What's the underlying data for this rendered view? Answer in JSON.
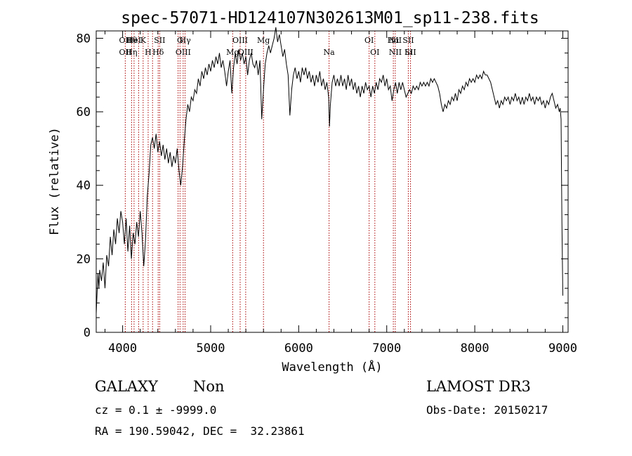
{
  "chart_data": {
    "type": "line",
    "title": "spec-57071-HD124107N302613M01_sp11-238.fits",
    "xlabel": "Wavelength (Å)",
    "ylabel": "Flux (relative)",
    "xlim": [
      3700,
      9060
    ],
    "ylim": [
      0,
      82
    ],
    "xticks": [
      4000,
      5000,
      6000,
      7000,
      8000,
      9000
    ],
    "yticks": [
      0,
      20,
      40,
      60,
      80
    ],
    "grid": false,
    "series": [
      {
        "points": [
          [
            3700,
            5
          ],
          [
            3710,
            11
          ],
          [
            3720,
            16
          ],
          [
            3730,
            12
          ],
          [
            3740,
            17
          ],
          [
            3760,
            14
          ],
          [
            3780,
            19
          ],
          [
            3800,
            12
          ],
          [
            3820,
            21
          ],
          [
            3840,
            18
          ],
          [
            3860,
            26
          ],
          [
            3880,
            21
          ],
          [
            3900,
            28
          ],
          [
            3920,
            24
          ],
          [
            3940,
            31
          ],
          [
            3960,
            27
          ],
          [
            3980,
            33
          ],
          [
            4000,
            30
          ],
          [
            4020,
            24
          ],
          [
            4040,
            31
          ],
          [
            4060,
            22
          ],
          [
            4080,
            29
          ],
          [
            4100,
            20
          ],
          [
            4120,
            27
          ],
          [
            4140,
            24
          ],
          [
            4160,
            30
          ],
          [
            4180,
            26
          ],
          [
            4200,
            33
          ],
          [
            4220,
            27
          ],
          [
            4240,
            18
          ],
          [
            4260,
            25
          ],
          [
            4280,
            37
          ],
          [
            4300,
            43
          ],
          [
            4320,
            51
          ],
          [
            4340,
            53
          ],
          [
            4360,
            50
          ],
          [
            4380,
            54
          ],
          [
            4400,
            49
          ],
          [
            4420,
            52
          ],
          [
            4440,
            48
          ],
          [
            4460,
            51
          ],
          [
            4480,
            47
          ],
          [
            4500,
            50
          ],
          [
            4520,
            46
          ],
          [
            4540,
            49
          ],
          [
            4560,
            45
          ],
          [
            4580,
            48
          ],
          [
            4600,
            46
          ],
          [
            4620,
            50
          ],
          [
            4640,
            44
          ],
          [
            4660,
            40
          ],
          [
            4680,
            45
          ],
          [
            4700,
            52
          ],
          [
            4720,
            58
          ],
          [
            4740,
            62
          ],
          [
            4760,
            60
          ],
          [
            4780,
            64
          ],
          [
            4800,
            63
          ],
          [
            4820,
            66
          ],
          [
            4840,
            65
          ],
          [
            4860,
            69
          ],
          [
            4880,
            67
          ],
          [
            4900,
            71
          ],
          [
            4920,
            69
          ],
          [
            4940,
            72
          ],
          [
            4960,
            70
          ],
          [
            4980,
            73
          ],
          [
            5000,
            71
          ],
          [
            5020,
            74
          ],
          [
            5040,
            72
          ],
          [
            5060,
            75
          ],
          [
            5080,
            73
          ],
          [
            5100,
            76
          ],
          [
            5120,
            72
          ],
          [
            5140,
            74
          ],
          [
            5160,
            71
          ],
          [
            5180,
            67
          ],
          [
            5200,
            71
          ],
          [
            5220,
            74
          ],
          [
            5240,
            65
          ],
          [
            5260,
            72
          ],
          [
            5280,
            76
          ],
          [
            5300,
            73
          ],
          [
            5320,
            77
          ],
          [
            5340,
            74
          ],
          [
            5360,
            76
          ],
          [
            5380,
            73
          ],
          [
            5400,
            75
          ],
          [
            5420,
            70
          ],
          [
            5440,
            74
          ],
          [
            5460,
            76
          ],
          [
            5480,
            73
          ],
          [
            5500,
            72
          ],
          [
            5520,
            74
          ],
          [
            5540,
            70
          ],
          [
            5560,
            74
          ],
          [
            5580,
            58
          ],
          [
            5600,
            66
          ],
          [
            5620,
            73
          ],
          [
            5640,
            76
          ],
          [
            5660,
            78
          ],
          [
            5680,
            76
          ],
          [
            5700,
            78
          ],
          [
            5720,
            80
          ],
          [
            5740,
            83
          ],
          [
            5760,
            79
          ],
          [
            5780,
            81
          ],
          [
            5800,
            78
          ],
          [
            5820,
            75
          ],
          [
            5840,
            77
          ],
          [
            5860,
            73
          ],
          [
            5880,
            70
          ],
          [
            5900,
            59
          ],
          [
            5920,
            66
          ],
          [
            5940,
            70
          ],
          [
            5960,
            72
          ],
          [
            5980,
            69
          ],
          [
            6000,
            71
          ],
          [
            6020,
            68
          ],
          [
            6040,
            72
          ],
          [
            6060,
            70
          ],
          [
            6080,
            72
          ],
          [
            6100,
            69
          ],
          [
            6120,
            71
          ],
          [
            6140,
            68
          ],
          [
            6160,
            70
          ],
          [
            6180,
            67
          ],
          [
            6200,
            70
          ],
          [
            6220,
            68
          ],
          [
            6240,
            71
          ],
          [
            6260,
            67
          ],
          [
            6280,
            69
          ],
          [
            6300,
            66
          ],
          [
            6320,
            68
          ],
          [
            6340,
            64
          ],
          [
            6350,
            56
          ],
          [
            6360,
            62
          ],
          [
            6380,
            68
          ],
          [
            6400,
            70
          ],
          [
            6420,
            67
          ],
          [
            6440,
            69
          ],
          [
            6460,
            67
          ],
          [
            6480,
            70
          ],
          [
            6500,
            67
          ],
          [
            6520,
            69
          ],
          [
            6540,
            66
          ],
          [
            6560,
            70
          ],
          [
            6580,
            67
          ],
          [
            6600,
            69
          ],
          [
            6620,
            66
          ],
          [
            6640,
            68
          ],
          [
            6660,
            65
          ],
          [
            6680,
            67
          ],
          [
            6700,
            64
          ],
          [
            6720,
            67
          ],
          [
            6740,
            65
          ],
          [
            6760,
            68
          ],
          [
            6780,
            66
          ],
          [
            6800,
            67
          ],
          [
            6820,
            64
          ],
          [
            6840,
            67
          ],
          [
            6860,
            65
          ],
          [
            6880,
            68
          ],
          [
            6900,
            66
          ],
          [
            6920,
            69
          ],
          [
            6940,
            68
          ],
          [
            6960,
            70
          ],
          [
            6980,
            67
          ],
          [
            7000,
            69
          ],
          [
            7020,
            66
          ],
          [
            7040,
            67
          ],
          [
            7060,
            63
          ],
          [
            7080,
            66
          ],
          [
            7100,
            68
          ],
          [
            7120,
            65
          ],
          [
            7140,
            68
          ],
          [
            7160,
            66
          ],
          [
            7180,
            68
          ],
          [
            7200,
            66
          ],
          [
            7220,
            64
          ],
          [
            7240,
            65
          ],
          [
            7260,
            66
          ],
          [
            7280,
            65
          ],
          [
            7300,
            67
          ],
          [
            7320,
            66
          ],
          [
            7340,
            67
          ],
          [
            7360,
            66
          ],
          [
            7380,
            68
          ],
          [
            7400,
            67
          ],
          [
            7420,
            68
          ],
          [
            7440,
            67
          ],
          [
            7460,
            68
          ],
          [
            7480,
            67
          ],
          [
            7500,
            69
          ],
          [
            7520,
            68
          ],
          [
            7540,
            69
          ],
          [
            7560,
            68
          ],
          [
            7580,
            67
          ],
          [
            7600,
            65
          ],
          [
            7620,
            62
          ],
          [
            7640,
            60
          ],
          [
            7660,
            62
          ],
          [
            7680,
            61
          ],
          [
            7700,
            63
          ],
          [
            7720,
            62
          ],
          [
            7740,
            64
          ],
          [
            7760,
            63
          ],
          [
            7780,
            65
          ],
          [
            7800,
            63
          ],
          [
            7820,
            66
          ],
          [
            7840,
            65
          ],
          [
            7860,
            67
          ],
          [
            7880,
            66
          ],
          [
            7900,
            68
          ],
          [
            7920,
            67
          ],
          [
            7940,
            69
          ],
          [
            7960,
            68
          ],
          [
            7980,
            69
          ],
          [
            8000,
            68
          ],
          [
            8020,
            70
          ],
          [
            8040,
            69
          ],
          [
            8060,
            70
          ],
          [
            8080,
            69
          ],
          [
            8100,
            71
          ],
          [
            8120,
            70
          ],
          [
            8140,
            70
          ],
          [
            8160,
            69
          ],
          [
            8180,
            68
          ],
          [
            8200,
            66
          ],
          [
            8220,
            64
          ],
          [
            8240,
            62
          ],
          [
            8260,
            63
          ],
          [
            8280,
            61
          ],
          [
            8300,
            63
          ],
          [
            8320,
            62
          ],
          [
            8340,
            64
          ],
          [
            8360,
            63
          ],
          [
            8380,
            64
          ],
          [
            8400,
            62
          ],
          [
            8420,
            64
          ],
          [
            8440,
            63
          ],
          [
            8460,
            65
          ],
          [
            8480,
            63
          ],
          [
            8500,
            64
          ],
          [
            8520,
            62
          ],
          [
            8540,
            64
          ],
          [
            8560,
            62
          ],
          [
            8580,
            64
          ],
          [
            8600,
            63
          ],
          [
            8620,
            65
          ],
          [
            8640,
            63
          ],
          [
            8660,
            64
          ],
          [
            8680,
            62
          ],
          [
            8700,
            64
          ],
          [
            8720,
            63
          ],
          [
            8740,
            64
          ],
          [
            8760,
            62
          ],
          [
            8780,
            63
          ],
          [
            8800,
            61
          ],
          [
            8820,
            63
          ],
          [
            8840,
            62
          ],
          [
            8860,
            64
          ],
          [
            8880,
            65
          ],
          [
            8900,
            63
          ],
          [
            8920,
            61
          ],
          [
            8940,
            62
          ],
          [
            8960,
            60
          ],
          [
            8970,
            61
          ],
          [
            8980,
            58
          ],
          [
            8990,
            30
          ],
          [
            9000,
            10
          ]
        ]
      }
    ],
    "lines": [
      {
        "wavelength": 4030,
        "labels": [
          "OII",
          "OII"
        ]
      },
      {
        "wavelength": 4102,
        "labels": [
          "Hθ",
          "Hη"
        ]
      },
      {
        "wavelength": 4130,
        "labels": [
          "HeI"
        ]
      },
      {
        "wavelength": 4182,
        "labels": []
      },
      {
        "wavelength": 4233,
        "labels": [
          "K"
        ]
      },
      {
        "wavelength": 4290,
        "labels": [
          "H"
        ]
      },
      {
        "wavelength": 4340,
        "labels": []
      },
      {
        "wavelength": 4404,
        "labels": [
          "Hδ"
        ]
      },
      {
        "wavelength": 4421,
        "labels": [
          "SII"
        ]
      },
      {
        "wavelength": 4630,
        "labels": []
      },
      {
        "wavelength": 4652,
        "labels": [
          "G"
        ]
      },
      {
        "wavelength": 4688,
        "labels": [
          "OIII"
        ]
      },
      {
        "wavelength": 4710,
        "labels": [
          "Hγ"
        ]
      },
      {
        "wavelength": 5250,
        "labels": [
          "Mg"
        ]
      },
      {
        "wavelength": 5335,
        "labels": [
          "OIII"
        ]
      },
      {
        "wavelength": 5398,
        "labels": [
          "OIII"
        ]
      },
      {
        "wavelength": 5600,
        "labels": [
          "Mg"
        ]
      },
      {
        "wavelength": 6345,
        "labels": [
          "Na"
        ]
      },
      {
        "wavelength": 6800,
        "labels": [
          "OI"
        ]
      },
      {
        "wavelength": 6865,
        "labels": [
          "OI"
        ]
      },
      {
        "wavelength": 7075,
        "labels": [
          "Hα"
        ]
      },
      {
        "wavelength": 7097,
        "labels": [
          "NII",
          "NII"
        ]
      },
      {
        "wavelength": 7245,
        "labels": [
          "SII",
          "Li"
        ]
      },
      {
        "wavelength": 7270,
        "labels": [
          "SII"
        ]
      }
    ],
    "line_color": "#aa0000"
  },
  "info": {
    "class": "GALAXY",
    "subclass": "Non",
    "survey": "LAMOST DR3",
    "cz": "cz = 0.1 ± -9999.0",
    "obs_date": "Obs-Date: 20150217",
    "coords": "RA = 190.59042, DEC =  32.23861"
  }
}
